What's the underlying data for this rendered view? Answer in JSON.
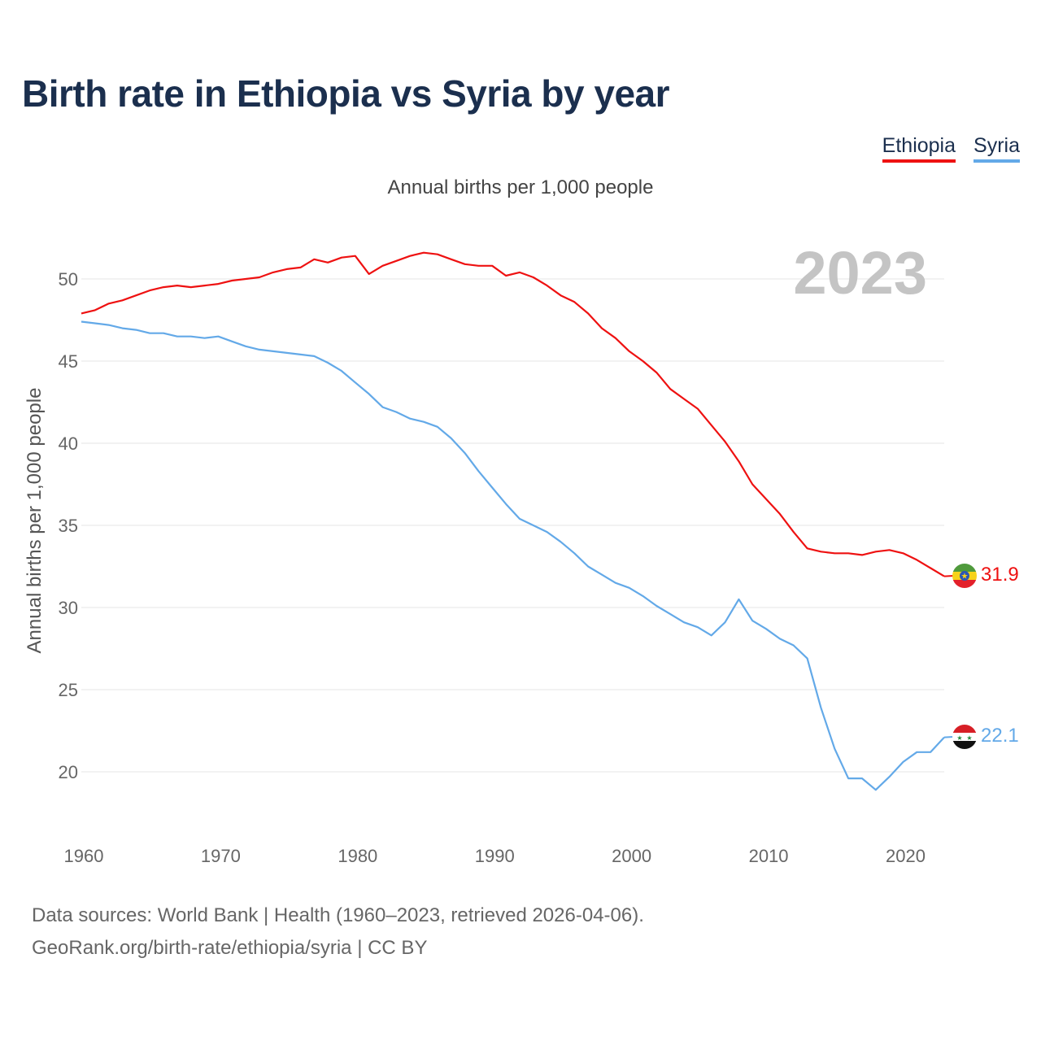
{
  "title": "Birth rate in Ethiopia vs Syria by year",
  "subtitle": "Annual births per 1,000 people",
  "year_badge": "2023",
  "legend": [
    {
      "name": "Ethiopia",
      "color": "#ee1111"
    },
    {
      "name": "Syria",
      "color": "#63a9e8"
    }
  ],
  "footer": {
    "line1": "Data sources: World Bank | Health (1960–2023, retrieved 2026-04-06).",
    "line2": "GeoRank.org/birth-rate/ethiopia/syria | CC BY"
  },
  "chart_data": {
    "type": "line",
    "title": "Birth rate in Ethiopia vs Syria by year",
    "xlabel": "",
    "ylabel": "Annual births per 1,000 people",
    "xlim": [
      1960,
      2023
    ],
    "ylim": [
      17,
      53
    ],
    "xticks": [
      1960,
      1970,
      1980,
      1990,
      2000,
      2010,
      2020
    ],
    "yticks": [
      20,
      25,
      30,
      35,
      40,
      45,
      50
    ],
    "grid": true,
    "x": [
      1960,
      1961,
      1962,
      1963,
      1964,
      1965,
      1966,
      1967,
      1968,
      1969,
      1970,
      1971,
      1972,
      1973,
      1974,
      1975,
      1976,
      1977,
      1978,
      1979,
      1980,
      1981,
      1982,
      1983,
      1984,
      1985,
      1986,
      1987,
      1988,
      1989,
      1990,
      1991,
      1992,
      1993,
      1994,
      1995,
      1996,
      1997,
      1998,
      1999,
      2000,
      2001,
      2002,
      2003,
      2004,
      2005,
      2006,
      2007,
      2008,
      2009,
      2010,
      2011,
      2012,
      2013,
      2014,
      2015,
      2016,
      2017,
      2018,
      2019,
      2020,
      2021,
      2022,
      2023
    ],
    "series": [
      {
        "name": "Ethiopia",
        "color": "#ee1111",
        "end_label": "31.9",
        "values": [
          47.9,
          48.1,
          48.5,
          48.7,
          49.0,
          49.3,
          49.5,
          49.6,
          49.5,
          49.6,
          49.7,
          49.9,
          50.0,
          50.1,
          50.4,
          50.6,
          50.7,
          51.2,
          51.0,
          51.3,
          51.4,
          50.3,
          50.8,
          51.1,
          51.4,
          51.6,
          51.5,
          51.2,
          50.9,
          50.8,
          50.8,
          50.2,
          50.4,
          50.1,
          49.6,
          49.0,
          48.6,
          47.9,
          47.0,
          46.4,
          45.6,
          45.0,
          44.3,
          43.3,
          42.7,
          42.1,
          41.1,
          40.1,
          38.9,
          37.5,
          36.6,
          35.7,
          34.6,
          33.6,
          33.4,
          33.3,
          33.3,
          33.2,
          33.4,
          33.5,
          33.3,
          32.9,
          32.4,
          31.9
        ]
      },
      {
        "name": "Syria",
        "color": "#63a9e8",
        "end_label": "22.1",
        "values": [
          47.4,
          47.3,
          47.2,
          47.0,
          46.9,
          46.7,
          46.7,
          46.5,
          46.5,
          46.4,
          46.5,
          46.2,
          45.9,
          45.7,
          45.6,
          45.5,
          45.4,
          45.3,
          44.9,
          44.4,
          43.7,
          43.0,
          42.2,
          41.9,
          41.5,
          41.3,
          41.0,
          40.3,
          39.4,
          38.3,
          37.3,
          36.3,
          35.4,
          35.0,
          34.6,
          34.0,
          33.3,
          32.5,
          32.0,
          31.5,
          31.2,
          30.7,
          30.1,
          29.6,
          29.1,
          28.8,
          28.3,
          29.1,
          30.5,
          29.2,
          28.7,
          28.1,
          27.7,
          26.9,
          23.9,
          21.4,
          19.6,
          19.6,
          18.9,
          19.7,
          20.6,
          21.2,
          21.2,
          22.1
        ]
      }
    ]
  }
}
